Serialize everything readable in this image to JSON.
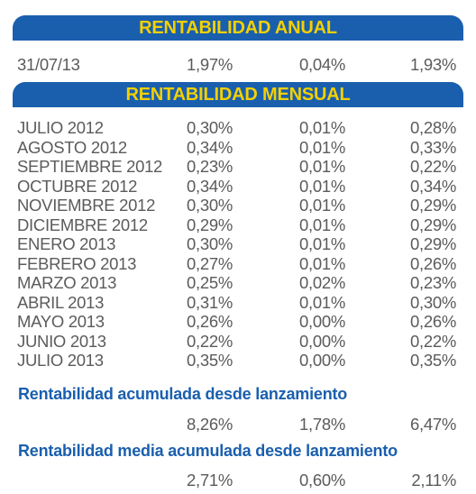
{
  "annual": {
    "title": "RENTABILIDAD ANUAL",
    "row": [
      "31/07/13",
      "1,97%",
      "0,04%",
      "1,93%"
    ]
  },
  "monthly": {
    "title": "RENTABILIDAD MENSUAL",
    "rows": [
      [
        "JULIO 2012",
        "0,30%",
        "0,01%",
        "0,28%"
      ],
      [
        "AGOSTO 2012",
        "0,34%",
        "0,01%",
        "0,33%"
      ],
      [
        "SEPTIEMBRE 2012",
        "0,23%",
        "0,01%",
        "0,22%"
      ],
      [
        "OCTUBRE 2012",
        "0,34%",
        "0,01%",
        "0,34%"
      ],
      [
        "NOVIEMBRE 2012",
        "0,30%",
        "0,01%",
        "0,29%"
      ],
      [
        "DICIEMBRE 2012",
        "0,29%",
        "0,01%",
        "0,29%"
      ],
      [
        "ENERO 2013",
        "0,30%",
        "0,01%",
        "0,29%"
      ],
      [
        "FEBRERO 2013",
        "0,27%",
        "0,01%",
        "0,26%"
      ],
      [
        "MARZO 2013",
        "0,25%",
        "0,02%",
        "0,23%"
      ],
      [
        "ABRIL 2013",
        "0,31%",
        "0,01%",
        "0,30%"
      ],
      [
        "MAYO 2013",
        "0,26%",
        "0,00%",
        "0,26%"
      ],
      [
        "JUNIO 2013",
        "0,22%",
        "0,00%",
        "0,22%"
      ],
      [
        "JULIO 2013",
        "0,35%",
        "0,00%",
        "0,35%"
      ]
    ]
  },
  "accumulated": {
    "title": "Rentabilidad acumulada desde lanzamiento",
    "values": [
      "8,26%",
      "1,78%",
      "6,47%"
    ]
  },
  "average_accumulated": {
    "title": "Rentabilidad media acumulada desde lanzamiento",
    "values": [
      "2,71%",
      "0,60%",
      "2,11%"
    ]
  },
  "colors": {
    "banner_bg": "#1a5fae",
    "banner_text": "#f4d000",
    "heading_text": "#1a5fae",
    "body_text": "#5b5b5b"
  }
}
